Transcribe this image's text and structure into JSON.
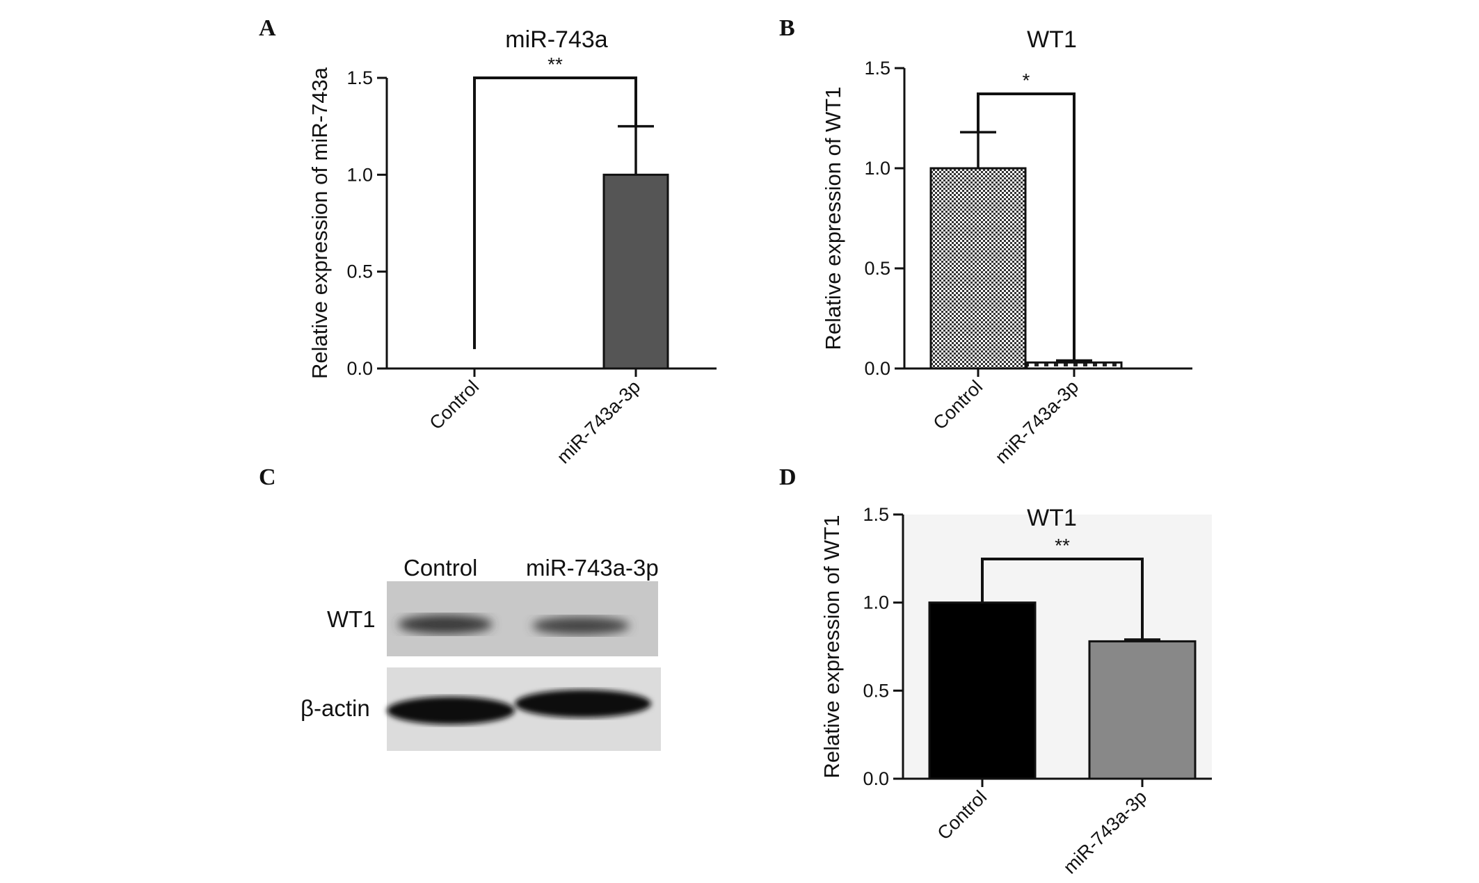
{
  "panels": {
    "A": {
      "letter": "A"
    },
    "B": {
      "letter": "B"
    },
    "C": {
      "letter": "C"
    },
    "D": {
      "letter": "D"
    }
  },
  "chart_data": [
    {
      "id": "A",
      "type": "bar",
      "title": "miR-743a",
      "ylabel": "Relative expression of miR-743a",
      "xlabel": "",
      "categories": [
        "Control",
        "miR-743a-3p"
      ],
      "values": [
        0.0,
        1.0
      ],
      "errors": [
        0.0,
        0.25
      ],
      "ylim": [
        0,
        1.5
      ],
      "yticks": [
        "0.0",
        "0.5",
        "1.0",
        "1.5"
      ],
      "significance": "**",
      "colors": [
        "#ffffff",
        "#555555"
      ]
    },
    {
      "id": "B",
      "type": "bar",
      "title": "WT1",
      "ylabel": "Relative expression of WT1",
      "xlabel": "",
      "categories": [
        "Control",
        "miR-743a-3p"
      ],
      "values": [
        1.0,
        0.03
      ],
      "errors": [
        0.18,
        0.01
      ],
      "ylim": [
        0,
        1.5
      ],
      "yticks": [
        "0.0",
        "0.5",
        "1.0",
        "1.5"
      ],
      "significance": "*",
      "colors": [
        "#777777",
        "#ffffff"
      ]
    },
    {
      "id": "D",
      "type": "bar",
      "title": "WT1",
      "ylabel": "Relative expression of WT1",
      "xlabel": "",
      "categories": [
        "Control",
        "miR-743a-3p"
      ],
      "values": [
        1.0,
        0.78
      ],
      "errors": [
        0.0,
        0.01
      ],
      "ylim": [
        0,
        1.5
      ],
      "yticks": [
        "0.0",
        "0.5",
        "1.0",
        "1.5"
      ],
      "significance": "**",
      "colors": [
        "#000000",
        "#888888"
      ]
    }
  ],
  "western_blot": {
    "lanes": [
      "Control",
      "miR-743a-3p"
    ],
    "rows": [
      "WT1",
      "β-actin"
    ]
  }
}
